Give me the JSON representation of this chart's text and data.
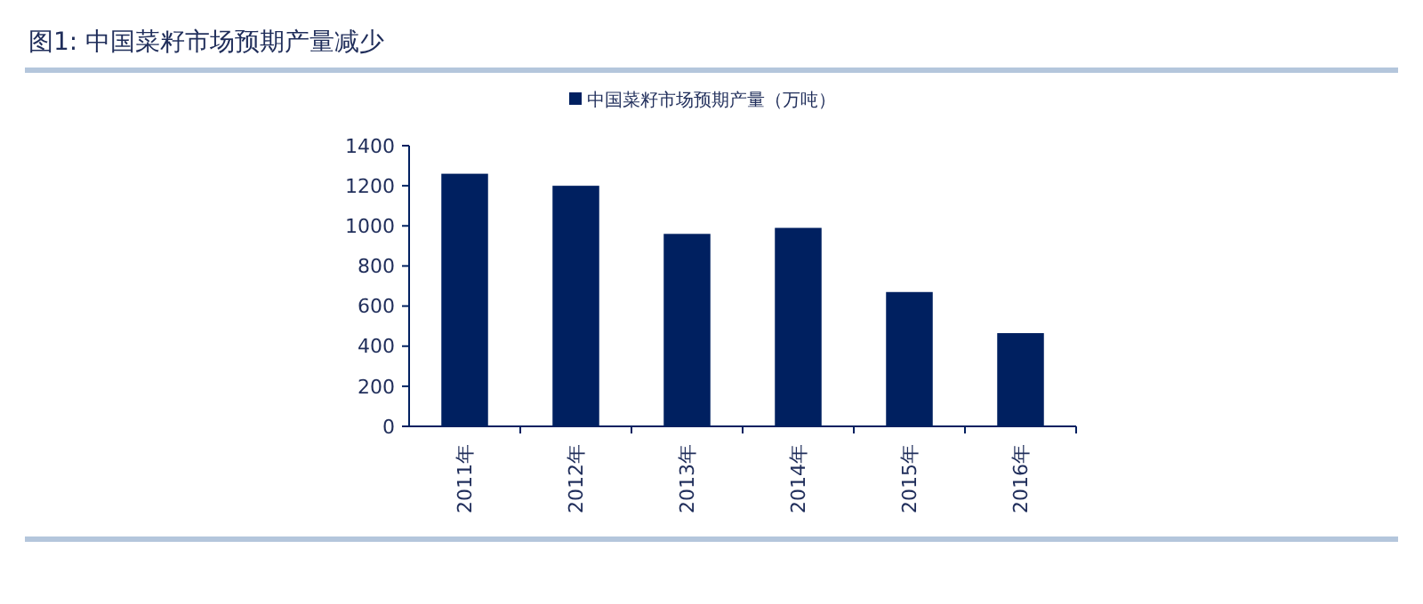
{
  "chart_data": {
    "type": "bar",
    "title": "图1: 中国菜籽市场预期产量减少",
    "categories": [
      "2011年",
      "2012年",
      "2013年",
      "2014年",
      "2015年",
      "2016年"
    ],
    "series": [
      {
        "name": "中国菜籽市场预期产量（万吨）",
        "color": "#002060",
        "values": [
          1260,
          1200,
          960,
          990,
          670,
          465
        ]
      }
    ],
    "ylim": [
      0,
      1400
    ],
    "yticks": [
      0,
      200,
      400,
      600,
      800,
      1000,
      1200,
      1400
    ],
    "grid": false,
    "legend": "top"
  }
}
